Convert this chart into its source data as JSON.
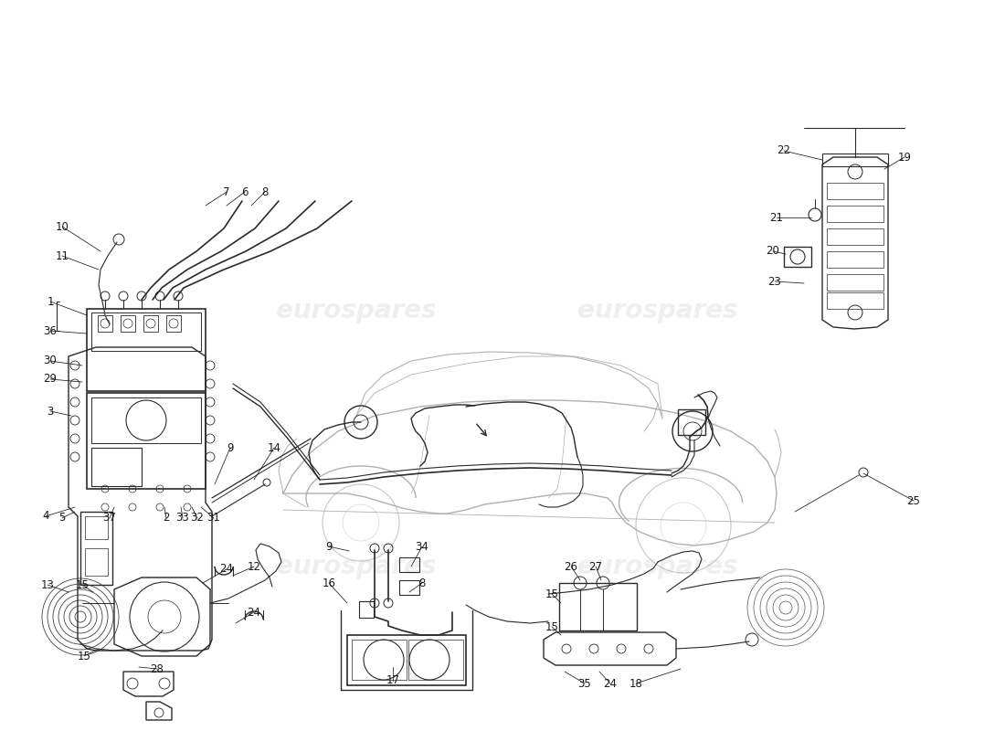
{
  "bg": "#ffffff",
  "lc": "#2a2a2a",
  "wm_color": "#c8c8c8",
  "wm_alpha": 0.28,
  "wm_text": "eurospares",
  "fs": 8.5,
  "figw": 11.0,
  "figh": 8.0,
  "car_color": "#b0b0b0",
  "car_lw": 0.8,
  "part_lw": 1.0,
  "thin_lw": 0.6,
  "leader_lw": 0.55
}
